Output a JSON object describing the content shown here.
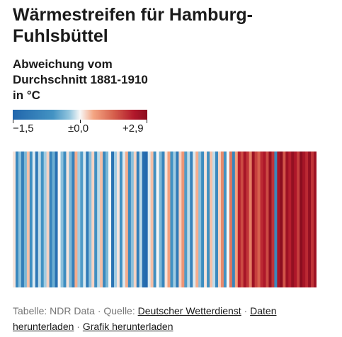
{
  "title": "Wärmestreifen für Hamburg-Fuhlsbüttel",
  "legend": {
    "title": "Abweichung vom Durchschnitt 1881-1910 in °C",
    "min_label": "−1,5",
    "mid_label": "±0,0",
    "max_label": "+2,9",
    "min": -1.5,
    "max": 2.9,
    "colors": [
      "#2166ac",
      "#4393c3",
      "#92c5de",
      "#f7f7f7",
      "#f4a582",
      "#d6604d",
      "#b2182b",
      "#8b0d1f"
    ]
  },
  "footer": {
    "prefix": "Tabelle: NDR Data · Quelle: ",
    "source_link": "Deutscher Wetterdienst",
    "sep1": " · ",
    "data_link": "Daten herunterladen",
    "sep2": " · ",
    "graphic_link": "Grafik herunterladen"
  },
  "chart_data": {
    "type": "heatmap",
    "title": "Wärmestreifen für Hamburg-Fuhlsbüttel",
    "value_label": "Abweichung vom Durchschnitt 1881-1910 in °C",
    "color_range": [
      -1.5,
      2.9
    ],
    "values": [
      0.8,
      -0.5,
      0.3,
      -0.8,
      0.2,
      1.0,
      -0.3,
      0.6,
      -1.0,
      0.5,
      -0.2,
      0.4,
      0.9,
      -0.6,
      0.1,
      -1.2,
      0.7,
      0.3,
      -0.4,
      0.8,
      0.2,
      -0.7,
      1.1,
      0.4,
      -0.1,
      0.6,
      -0.9,
      0.3,
      0.9,
      -0.3,
      0.5,
      1.0,
      -0.5,
      0.2,
      0.7,
      -1.1,
      0.4,
      0.8,
      -0.2,
      0.6,
      1.1,
      -0.4,
      0.3,
      0.9,
      -0.8,
      0.5,
      -1.3,
      -1.4,
      0.6,
      1.0,
      -0.3,
      0.7,
      0.2,
      -0.6,
      0.8,
      1.2,
      -0.2,
      0.4,
      -0.9,
      0.9,
      1.3,
      -0.1,
      0.5,
      -0.7,
      0.6,
      1.1,
      0.3,
      -0.4,
      0.8,
      -0.3,
      1.0,
      0.5,
      -0.5,
      0.9,
      1.4,
      -0.2,
      0.7,
      1.6,
      -0.6,
      1.2,
      2.4,
      2.0,
      2.6,
      2.2,
      1.5,
      2.7,
      2.1,
      1.8,
      2.3,
      2.5,
      2.0,
      2.8,
      2.2,
      -0.5,
      2.6,
      2.9,
      1.9,
      2.7,
      2.4,
      2.8,
      2.5,
      2.1,
      2.9,
      2.6,
      2.3,
      2.8,
      2.2,
      2.7
    ]
  }
}
